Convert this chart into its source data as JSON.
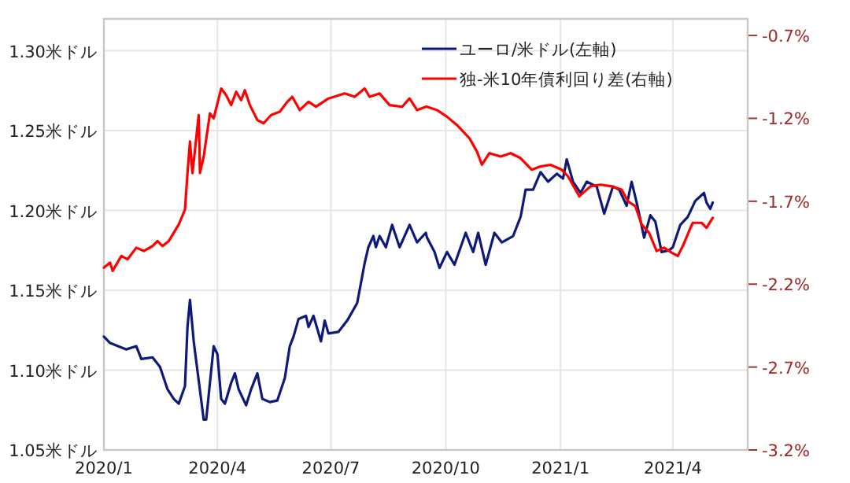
{
  "chart_data": {
    "type": "line",
    "legend": "top right",
    "grid": true,
    "xlim": [
      "2020-01-01",
      "2021-05-31"
    ],
    "xticks": [
      {
        "value": "2020-01",
        "label": "2020/1"
      },
      {
        "value": "2020-04",
        "label": "2020/4"
      },
      {
        "value": "2020-07",
        "label": "2020/7"
      },
      {
        "value": "2020-10",
        "label": "2020/10"
      },
      {
        "value": "2021-01",
        "label": "2021/1"
      },
      {
        "value": "2021-04",
        "label": "2021/4"
      }
    ],
    "ylim": [
      1.05,
      1.32
    ],
    "yticks": [
      {
        "value": 1.05,
        "label": "1.05米ドル"
      },
      {
        "value": 1.1,
        "label": "1.10米ドル"
      },
      {
        "value": 1.15,
        "label": "1.15米ドル"
      },
      {
        "value": 1.2,
        "label": "1.20米ドル"
      },
      {
        "value": 1.25,
        "label": "1.25米ドル"
      },
      {
        "value": 1.3,
        "label": "1.30米ドル"
      }
    ],
    "y2lim": [
      -3.2,
      -0.6
    ],
    "y2ticks": [
      {
        "value": -3.2,
        "label": "-3.2%"
      },
      {
        "value": -2.7,
        "label": "-2.7%"
      },
      {
        "value": -2.2,
        "label": "-2.2%"
      },
      {
        "value": -1.7,
        "label": "-1.7%"
      },
      {
        "value": -1.2,
        "label": "-1.2%"
      },
      {
        "value": -0.7,
        "label": "-0.7%"
      }
    ],
    "series": [
      {
        "name": "ユーロ/米ドル(左軸)",
        "color": "#0d1a7a",
        "axis": "y",
        "x": [
          "2020-01-01",
          "2020-01-06",
          "2020-01-19",
          "2020-01-27",
          "2020-01-31",
          "2020-02-09",
          "2020-02-15",
          "2020-02-21",
          "2020-02-26",
          "2020-03-01",
          "2020-03-06",
          "2020-03-08",
          "2020-03-10",
          "2020-03-13",
          "2020-03-21",
          "2020-03-23",
          "2020-03-29",
          "2020-04-01",
          "2020-04-04",
          "2020-04-07",
          "2020-04-12",
          "2020-04-15",
          "2020-04-18",
          "2020-04-24",
          "2020-04-28",
          "2020-05-03",
          "2020-05-07",
          "2020-05-13",
          "2020-05-19",
          "2020-05-25",
          "2020-05-29",
          "2020-06-01",
          "2020-06-05",
          "2020-06-11",
          "2020-06-13",
          "2020-06-17",
          "2020-06-23",
          "2020-06-26",
          "2020-06-29",
          "2020-07-07",
          "2020-07-14",
          "2020-07-22",
          "2020-07-28",
          "2020-07-31",
          "2020-08-04",
          "2020-08-06",
          "2020-08-09",
          "2020-08-14",
          "2020-08-19",
          "2020-08-25",
          "2020-09-02",
          "2020-09-08",
          "2020-09-15",
          "2020-09-16",
          "2020-09-22",
          "2020-09-26",
          "2020-10-02",
          "2020-10-08",
          "2020-10-17",
          "2020-10-23",
          "2020-10-27",
          "2020-11-02",
          "2020-11-09",
          "2020-11-15",
          "2020-11-24",
          "2020-11-30",
          "2020-12-04",
          "2020-12-10",
          "2020-12-16",
          "2020-12-22",
          "2020-12-29",
          "2021-01-03",
          "2021-01-06",
          "2021-01-11",
          "2021-01-17",
          "2021-01-22",
          "2021-01-30",
          "2021-02-05",
          "2021-02-12",
          "2021-02-17",
          "2021-02-23",
          "2021-02-27",
          "2021-03-03",
          "2021-03-09",
          "2021-03-14",
          "2021-03-18",
          "2021-03-23",
          "2021-03-29",
          "2021-04-01",
          "2021-04-07",
          "2021-04-13",
          "2021-04-19",
          "2021-04-26",
          "2021-04-28",
          "2021-05-01",
          "2021-05-03"
        ],
        "values": [
          1.121,
          1.117,
          1.113,
          1.115,
          1.107,
          1.108,
          1.102,
          1.088,
          1.082,
          1.079,
          1.09,
          1.127,
          1.144,
          1.118,
          1.069,
          1.069,
          1.115,
          1.11,
          1.082,
          1.079,
          1.092,
          1.098,
          1.088,
          1.078,
          1.088,
          1.098,
          1.082,
          1.08,
          1.081,
          1.095,
          1.115,
          1.121,
          1.132,
          1.134,
          1.127,
          1.134,
          1.118,
          1.131,
          1.123,
          1.124,
          1.131,
          1.142,
          1.167,
          1.177,
          1.184,
          1.177,
          1.184,
          1.177,
          1.191,
          1.177,
          1.191,
          1.18,
          1.186,
          1.183,
          1.174,
          1.164,
          1.174,
          1.166,
          1.186,
          1.174,
          1.186,
          1.166,
          1.186,
          1.18,
          1.184,
          1.196,
          1.213,
          1.213,
          1.224,
          1.218,
          1.223,
          1.22,
          1.232,
          1.218,
          1.211,
          1.218,
          1.215,
          1.198,
          1.215,
          1.213,
          1.203,
          1.218,
          1.205,
          1.183,
          1.197,
          1.193,
          1.174,
          1.175,
          1.177,
          1.191,
          1.196,
          1.206,
          1.211,
          1.205,
          1.201,
          1.205
        ]
      },
      {
        "name": "独-米10年債利回り差(右軸)",
        "color": "#ff0000",
        "axis": "y2",
        "x": [
          "2020-01-01",
          "2020-01-06",
          "2020-01-08",
          "2020-01-15",
          "2020-01-20",
          "2020-01-27",
          "2020-02-02",
          "2020-02-09",
          "2020-02-13",
          "2020-02-17",
          "2020-02-22",
          "2020-03-01",
          "2020-03-06",
          "2020-03-08",
          "2020-03-10",
          "2020-03-12",
          "2020-03-17",
          "2020-03-18",
          "2020-03-21",
          "2020-03-26",
          "2020-03-29",
          "2020-04-04",
          "2020-04-08",
          "2020-04-12",
          "2020-04-16",
          "2020-04-20",
          "2020-04-23",
          "2020-04-27",
          "2020-05-03",
          "2020-05-08",
          "2020-05-14",
          "2020-05-21",
          "2020-05-27",
          "2020-05-31",
          "2020-06-06",
          "2020-06-13",
          "2020-06-19",
          "2020-06-29",
          "2020-07-12",
          "2020-07-20",
          "2020-07-28",
          "2020-08-01",
          "2020-08-09",
          "2020-08-17",
          "2020-08-27",
          "2020-09-02",
          "2020-09-08",
          "2020-09-15",
          "2020-09-16",
          "2020-09-24",
          "2020-10-02",
          "2020-10-10",
          "2020-10-20",
          "2020-10-26",
          "2020-10-30",
          "2020-11-05",
          "2020-11-14",
          "2020-11-22",
          "2020-11-30",
          "2020-12-09",
          "2020-12-16",
          "2020-12-24",
          "2021-01-02",
          "2021-01-07",
          "2021-01-16",
          "2021-01-25",
          "2021-02-02",
          "2021-02-11",
          "2021-02-19",
          "2021-02-24",
          "2021-03-02",
          "2021-03-07",
          "2021-03-13",
          "2021-03-19",
          "2021-03-25",
          "2021-03-31",
          "2021-04-05",
          "2021-04-09",
          "2021-04-14",
          "2021-04-17",
          "2021-04-24",
          "2021-04-28",
          "2021-05-03"
        ],
        "values": [
          -2.1,
          -2.07,
          -2.12,
          -2.03,
          -2.05,
          -1.98,
          -2.0,
          -1.97,
          -1.94,
          -1.97,
          -1.94,
          -1.84,
          -1.75,
          -1.53,
          -1.34,
          -1.53,
          -1.18,
          -1.53,
          -1.43,
          -1.17,
          -1.2,
          -1.02,
          -1.06,
          -1.12,
          -1.04,
          -1.09,
          -1.03,
          -1.12,
          -1.21,
          -1.23,
          -1.18,
          -1.16,
          -1.1,
          -1.07,
          -1.15,
          -1.1,
          -1.13,
          -1.08,
          -1.05,
          -1.07,
          -1.02,
          -1.07,
          -1.05,
          -1.12,
          -1.13,
          -1.08,
          -1.15,
          -1.13,
          -1.13,
          -1.15,
          -1.19,
          -1.24,
          -1.32,
          -1.4,
          -1.48,
          -1.41,
          -1.43,
          -1.41,
          -1.44,
          -1.51,
          -1.49,
          -1.48,
          -1.51,
          -1.55,
          -1.67,
          -1.61,
          -1.6,
          -1.61,
          -1.63,
          -1.7,
          -1.73,
          -1.84,
          -1.89,
          -2.0,
          -1.98,
          -2.01,
          -2.03,
          -1.97,
          -1.88,
          -1.83,
          -1.83,
          -1.86,
          -1.8
        ]
      }
    ]
  }
}
